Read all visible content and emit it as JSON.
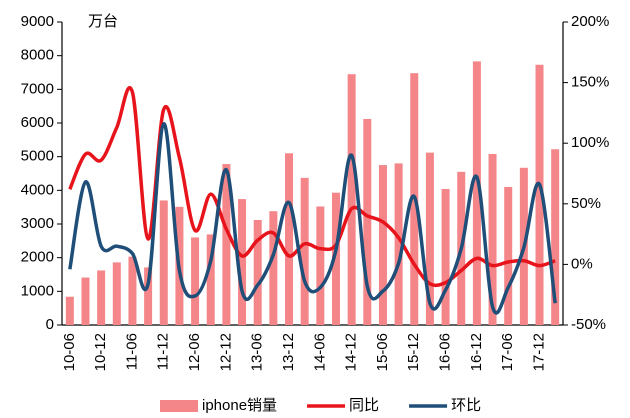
{
  "chart_data": {
    "type": "bar_line",
    "unit_label": "万台",
    "categories": [
      "10-06",
      null,
      "10-12",
      null,
      "11-06",
      null,
      "11-12",
      null,
      "12-06",
      null,
      "12-12",
      null,
      "13-06",
      null,
      "13-12",
      null,
      "14-06",
      null,
      "14-12",
      null,
      "15-06",
      null,
      "15-12",
      null,
      "16-06",
      null,
      "16-12",
      null,
      "17-06",
      null,
      "17-12",
      null
    ],
    "series": [
      {
        "name": "iphone销量",
        "type": "bar",
        "color": "#f4868a",
        "values": [
          840,
          1410,
          1620,
          1860,
          2030,
          1710,
          3700,
          3510,
          2600,
          2690,
          4780,
          3740,
          3120,
          3380,
          5100,
          4370,
          3520,
          3930,
          7450,
          6120,
          4750,
          4800,
          7480,
          5120,
          4040,
          4550,
          7830,
          5080,
          4100,
          4670,
          7730,
          5220
        ]
      },
      {
        "name": "同比",
        "type": "line",
        "axis": "y2",
        "color": "#e8141b",
        "values": [
          62,
          91,
          86,
          113,
          142,
          21,
          128,
          88,
          28,
          58,
          29,
          7,
          20,
          26,
          7,
          17,
          13,
          16,
          46,
          40,
          35,
          22,
          0,
          -16,
          -15,
          -5,
          5,
          -1,
          2,
          3,
          -1,
          3
        ]
      },
      {
        "name": "环比",
        "type": "line",
        "axis": "y2",
        "color": "#1f4e79",
        "values": [
          -4,
          68,
          15,
          15,
          9,
          -16,
          116,
          -5,
          -26,
          3,
          78,
          -22,
          -17,
          8,
          51,
          -14,
          -19,
          12,
          90,
          -18,
          -22,
          1,
          56,
          -32,
          -21,
          13,
          72,
          -35,
          -19,
          14,
          66,
          -32
        ]
      }
    ],
    "ylim": [
      0,
      9000
    ],
    "yticks": [
      0,
      1000,
      2000,
      3000,
      4000,
      5000,
      6000,
      7000,
      8000,
      9000
    ],
    "y2lim": [
      -50,
      200
    ],
    "y2ticks": [
      {
        "value": -50,
        "label": "-50%"
      },
      {
        "value": 0,
        "label": "0%"
      },
      {
        "value": 50,
        "label": "50%"
      },
      {
        "value": 100,
        "label": "100%"
      },
      {
        "value": 150,
        "label": "150%"
      },
      {
        "value": 200,
        "label": "200%"
      }
    ],
    "legend": "bottom"
  }
}
